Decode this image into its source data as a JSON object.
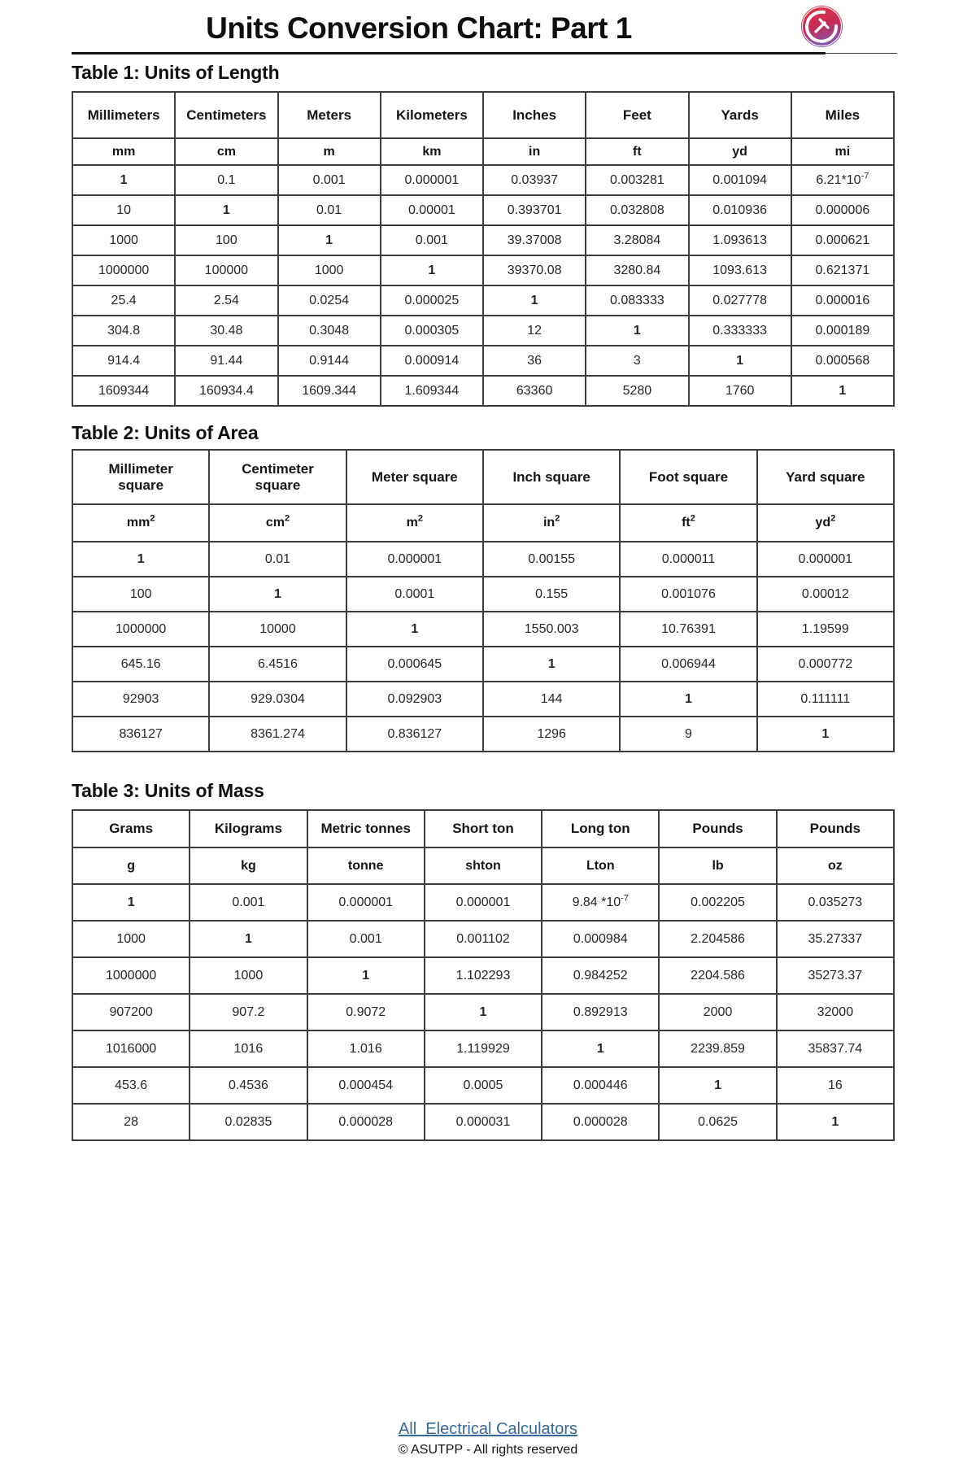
{
  "page": {
    "title": "Units Conversion Chart: Part 1"
  },
  "tables": [
    {
      "title": "Table 1: Units of Length",
      "headers": [
        "Millimeters",
        "Centimeters",
        "Meters",
        "Kilometers",
        "Inches",
        "Feet",
        "Yards",
        "Miles"
      ],
      "units": [
        "mm",
        "cm",
        "m",
        "km",
        "in",
        "ft",
        "yd",
        "mi"
      ],
      "rows": [
        [
          "1",
          "0.1",
          "0.001",
          "0.000001",
          "0.03937",
          "0.003281",
          "0.001094",
          "6.21*10^-7"
        ],
        [
          "10",
          "1",
          "0.01",
          "0.00001",
          "0.393701",
          "0.032808",
          "0.010936",
          "0.000006"
        ],
        [
          "1000",
          "100",
          "1",
          "0.001",
          "39.37008",
          "3.28084",
          "1.093613",
          "0.000621"
        ],
        [
          "1000000",
          "100000",
          "1000",
          "1",
          "39370.08",
          "3280.84",
          "1093.613",
          "0.621371"
        ],
        [
          "25.4",
          "2.54",
          "0.0254",
          "0.000025",
          "1",
          "0.083333",
          "0.027778",
          "0.000016"
        ],
        [
          "304.8",
          "30.48",
          "0.3048",
          "0.000305",
          "12",
          "1",
          "0.333333",
          "0.000189"
        ],
        [
          "914.4",
          "91.44",
          "0.9144",
          "0.000914",
          "36",
          "3",
          "1",
          "0.000568"
        ],
        [
          "1609344",
          "160934.4",
          "1609.344",
          "1.609344",
          "63360",
          "5280",
          "1760",
          "1"
        ]
      ]
    },
    {
      "title": "Table 2: Units of Area",
      "headers": [
        "Millimeter\nsquare",
        "Centimeter\nsquare",
        "Meter square",
        "Inch square",
        "Foot square",
        "Yard square"
      ],
      "units": [
        "mm^2",
        "cm^2",
        "m^2",
        "in^2",
        "ft^2",
        "yd^2"
      ],
      "rows": [
        [
          "1",
          "0.01",
          "0.000001",
          "0.00155",
          "0.000011",
          "0.000001"
        ],
        [
          "100",
          "1",
          "0.0001",
          "0.155",
          "0.001076",
          "0.00012"
        ],
        [
          "1000000",
          "10000",
          "1",
          "1550.003",
          "10.76391",
          "1.19599"
        ],
        [
          "645.16",
          "6.4516",
          "0.000645",
          "1",
          "0.006944",
          "0.000772"
        ],
        [
          "92903",
          "929.0304",
          "0.092903",
          "144",
          "1",
          "0.111111"
        ],
        [
          "836127",
          "8361.274",
          "0.836127",
          "1296",
          "9",
          "1"
        ]
      ]
    },
    {
      "title": "Table 3: Units of Mass",
      "headers": [
        "Grams",
        "Kilograms",
        "Metric tonnes",
        "Short ton",
        "Long ton",
        "Pounds",
        "Pounds"
      ],
      "units": [
        "g",
        "kg",
        "tonne",
        "shton",
        "Lton",
        "lb",
        "oz"
      ],
      "rows": [
        [
          "1",
          "0.001",
          "0.000001",
          "0.000001",
          "9.84 *10^-7",
          "0.002205",
          "0.035273"
        ],
        [
          "1000",
          "1",
          "0.001",
          "0.001102",
          "0.000984",
          "2.204586",
          "35.27337"
        ],
        [
          "1000000",
          "1000",
          "1",
          "1.102293",
          "0.984252",
          "2204.586",
          "35273.37"
        ],
        [
          "907200",
          "907.2",
          "0.9072",
          "1",
          "0.892913",
          "2000",
          "32000"
        ],
        [
          "1016000",
          "1016",
          "1.016",
          "1.119929",
          "1",
          "2239.859",
          "35837.74"
        ],
        [
          "453.6",
          "0.4536",
          "0.000454",
          "0.0005",
          "0.000446",
          "1",
          "16"
        ],
        [
          "28",
          "0.02835",
          "0.000028",
          "0.000031",
          "0.000028",
          "0.0625",
          "1"
        ]
      ]
    }
  ],
  "footer": {
    "link": "All  Electrical Calculators",
    "copyright": "© ASUTPP - All rights reserved"
  },
  "colors": {
    "link": "#34699b",
    "logo_top": "#e4323f",
    "logo_bottom": "#7e57b2",
    "border": "#3c3c3c"
  }
}
